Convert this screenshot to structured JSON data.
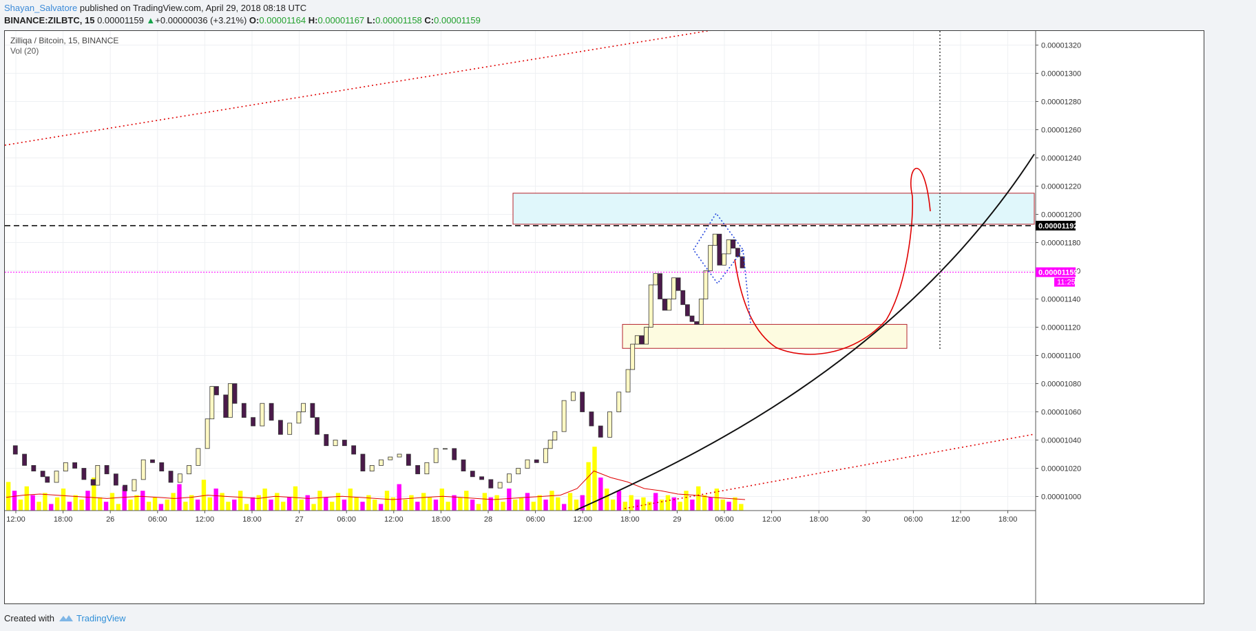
{
  "header": {
    "author": "Shayan_Salvatore",
    "published_text": " published on TradingView.com, April 29, 2018 08:18 UTC",
    "symbol_label": "BINANCE:ZILBTC, 15",
    "last_price": "0.00001159",
    "change_arrow": "▲",
    "change_text": "+0.00000036 (+3.21%)",
    "o_label": "O:",
    "o_value": "0.00001164",
    "h_label": "H:",
    "h_value": "0.00001167",
    "l_label": "L:",
    "l_value": "0.00001158",
    "c_label": "C:",
    "c_value": "0.00001159"
  },
  "legend": {
    "title": "Zilliqa / Bitcoin, 15, BINANCE",
    "volume_label": "Vol (20)"
  },
  "footer": {
    "created_with": "Created with",
    "brand": "TradingView"
  },
  "chart_data": {
    "type": "candlestick",
    "price_axis": {
      "min": 9.9e-06,
      "max": 1.33e-05,
      "ticks": [
        "0.00001320",
        "0.00001300",
        "0.00001280",
        "0.00001260",
        "0.00001240",
        "0.00001220",
        "0.00001200",
        "0.00001180",
        "0.00001160",
        "0.00001140",
        "0.00001120",
        "0.00001100",
        "0.00001080",
        "0.00001060",
        "0.00001040",
        "0.00001020",
        "0.00001000"
      ]
    },
    "time_axis": {
      "ticks": [
        "12:00",
        "18:00",
        "26",
        "06:00",
        "12:00",
        "18:00",
        "27",
        "06:00",
        "12:00",
        "18:00",
        "28",
        "06:00",
        "12:00",
        "18:00",
        "29",
        "06:00",
        "12:00",
        "18:00",
        "30",
        "06:00",
        "12:00",
        "18:00"
      ]
    },
    "resistance_price_label": "0.00001192",
    "resistance_price": 1.192e-05,
    "current_price_label": "0.00001159",
    "current_price": 1.159e-05,
    "countdown_label": "11:25",
    "zones": [
      {
        "name": "supply-zone",
        "top": 1.215e-05,
        "bottom": 1.193e-05,
        "fill": "#e0f7fb"
      },
      {
        "name": "demand-zone",
        "top": 1.122e-05,
        "bottom": 1.105e-05,
        "fill": "#fdfbe0"
      }
    ],
    "price_path": [
      [
        0,
        1036
      ],
      [
        4,
        1030
      ],
      [
        8,
        1022
      ],
      [
        12,
        1018
      ],
      [
        16,
        1014
      ],
      [
        18,
        1010
      ],
      [
        22,
        1018
      ],
      [
        26,
        1024
      ],
      [
        30,
        1020
      ],
      [
        34,
        1012
      ],
      [
        38,
        1008
      ],
      [
        40,
        1022
      ],
      [
        44,
        1016
      ],
      [
        48,
        1008
      ],
      [
        52,
        1004
      ],
      [
        56,
        1012
      ],
      [
        60,
        1026
      ],
      [
        64,
        1024
      ],
      [
        68,
        1018
      ],
      [
        72,
        1010
      ],
      [
        76,
        1016
      ],
      [
        80,
        1022
      ],
      [
        84,
        1034
      ],
      [
        88,
        1055
      ],
      [
        90,
        1078
      ],
      [
        92,
        1072
      ],
      [
        96,
        1056
      ],
      [
        98,
        1080
      ],
      [
        100,
        1066
      ],
      [
        104,
        1056
      ],
      [
        108,
        1050
      ],
      [
        112,
        1066
      ],
      [
        116,
        1054
      ],
      [
        120,
        1044
      ],
      [
        124,
        1052
      ],
      [
        128,
        1060
      ],
      [
        130,
        1066
      ],
      [
        134,
        1056
      ],
      [
        136,
        1044
      ],
      [
        140,
        1036
      ],
      [
        144,
        1040
      ],
      [
        148,
        1036
      ],
      [
        152,
        1030
      ],
      [
        156,
        1018
      ],
      [
        160,
        1022
      ],
      [
        164,
        1026
      ],
      [
        168,
        1028
      ],
      [
        172,
        1030
      ],
      [
        176,
        1022
      ],
      [
        180,
        1016
      ],
      [
        184,
        1024
      ],
      [
        188,
        1034
      ],
      [
        192,
        1034
      ],
      [
        196,
        1026
      ],
      [
        200,
        1018
      ],
      [
        204,
        1014
      ],
      [
        208,
        1012
      ],
      [
        212,
        1006
      ],
      [
        216,
        1010
      ],
      [
        220,
        1016
      ],
      [
        224,
        1020
      ],
      [
        228,
        1026
      ],
      [
        232,
        1024
      ],
      [
        236,
        1034
      ],
      [
        238,
        1040
      ],
      [
        240,
        1046
      ],
      [
        244,
        1068
      ],
      [
        248,
        1074
      ],
      [
        252,
        1060
      ],
      [
        256,
        1050
      ],
      [
        260,
        1042
      ],
      [
        264,
        1060
      ],
      [
        268,
        1074
      ],
      [
        272,
        1090
      ],
      [
        274,
        1108
      ],
      [
        276,
        1114
      ],
      [
        278,
        1108
      ],
      [
        280,
        1120
      ],
      [
        282,
        1150
      ],
      [
        284,
        1158
      ],
      [
        286,
        1140
      ],
      [
        288,
        1132
      ],
      [
        290,
        1140
      ],
      [
        292,
        1155
      ],
      [
        294,
        1146
      ],
      [
        296,
        1136
      ],
      [
        298,
        1128
      ],
      [
        300,
        1124
      ],
      [
        302,
        1122
      ],
      [
        304,
        1140
      ],
      [
        306,
        1160
      ],
      [
        308,
        1178
      ],
      [
        310,
        1186
      ],
      [
        312,
        1164
      ],
      [
        314,
        1172
      ],
      [
        316,
        1182
      ],
      [
        318,
        1176
      ],
      [
        320,
        1170
      ],
      [
        322,
        1162
      ]
    ],
    "volume": {
      "values": [
        26,
        18,
        10,
        22,
        14,
        8,
        16,
        6,
        12,
        20,
        8,
        14,
        10,
        18,
        30,
        12,
        8,
        16,
        6,
        22,
        10,
        14,
        18,
        8,
        12,
        6,
        10,
        16,
        24,
        8,
        14,
        10,
        28,
        12,
        20,
        16,
        8,
        10,
        18,
        6,
        12,
        14,
        20,
        10,
        16,
        8,
        12,
        22,
        10,
        14,
        6,
        18,
        12,
        8,
        16,
        10,
        20,
        12,
        8,
        14,
        10,
        6,
        18,
        12,
        24,
        10,
        14,
        8,
        16,
        12,
        10,
        20,
        8,
        14,
        12,
        18,
        10,
        6,
        16,
        12,
        14,
        8,
        20,
        10,
        12,
        16,
        8,
        14,
        10,
        18,
        12,
        6,
        16,
        10,
        14,
        44,
        58,
        30,
        20,
        10,
        18,
        8,
        14,
        10,
        12,
        8,
        16,
        10,
        14,
        12,
        8,
        18,
        10,
        22,
        14,
        12,
        20,
        10,
        8,
        12,
        6
      ],
      "ma_path": [
        12,
        14,
        15,
        14,
        13,
        12,
        11,
        12,
        13,
        12,
        11,
        12,
        14,
        13,
        12,
        11,
        13,
        12,
        11,
        12,
        13,
        12,
        11,
        10,
        11,
        12,
        13,
        12,
        11,
        10,
        11,
        12,
        13,
        14,
        20,
        36,
        30,
        26,
        20,
        18,
        15,
        14,
        12,
        11,
        10
      ]
    }
  }
}
